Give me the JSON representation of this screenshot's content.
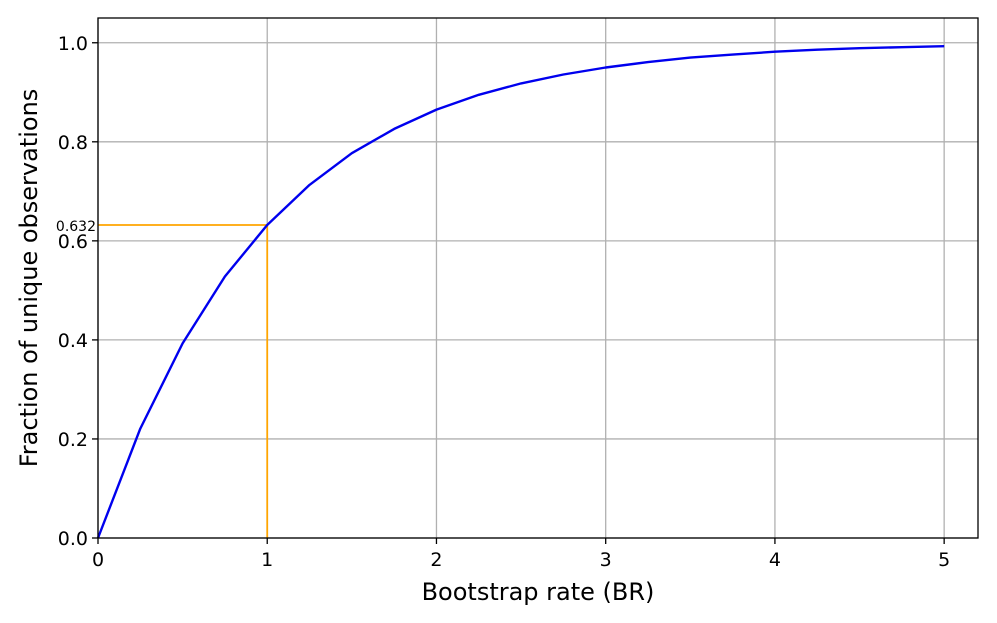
{
  "chart_data": {
    "type": "line",
    "xlabel": "Bootstrap rate (BR)",
    "ylabel": "Fraction of unique observations",
    "xlim": [
      0,
      5.2
    ],
    "ylim": [
      0,
      1.05
    ],
    "xticks": [
      0,
      1,
      2,
      3,
      4,
      5
    ],
    "yticks": [
      0.0,
      0.2,
      0.4,
      0.6,
      0.8,
      1.0
    ],
    "xtick_labels": [
      "0",
      "1",
      "2",
      "3",
      "4",
      "5"
    ],
    "ytick_labels": [
      "0.0",
      "0.2",
      "0.4",
      "0.6",
      "0.8",
      "1.0"
    ],
    "grid": true,
    "series": [
      {
        "color": "#0000ee",
        "x": [
          0,
          0.25,
          0.5,
          0.75,
          1,
          1.25,
          1.5,
          1.75,
          2,
          2.25,
          2.5,
          2.75,
          3,
          3.25,
          3.5,
          3.75,
          4,
          4.25,
          4.5,
          4.75,
          5
        ],
        "y": [
          0,
          0.221,
          0.393,
          0.528,
          0.632,
          0.713,
          0.777,
          0.826,
          0.865,
          0.895,
          0.918,
          0.936,
          0.95,
          0.961,
          0.97,
          0.976,
          0.982,
          0.986,
          0.989,
          0.991,
          0.993
        ]
      }
    ],
    "annotation": {
      "x": 1,
      "y": 0.632,
      "label": "0.632",
      "color": "#ffa500"
    }
  }
}
